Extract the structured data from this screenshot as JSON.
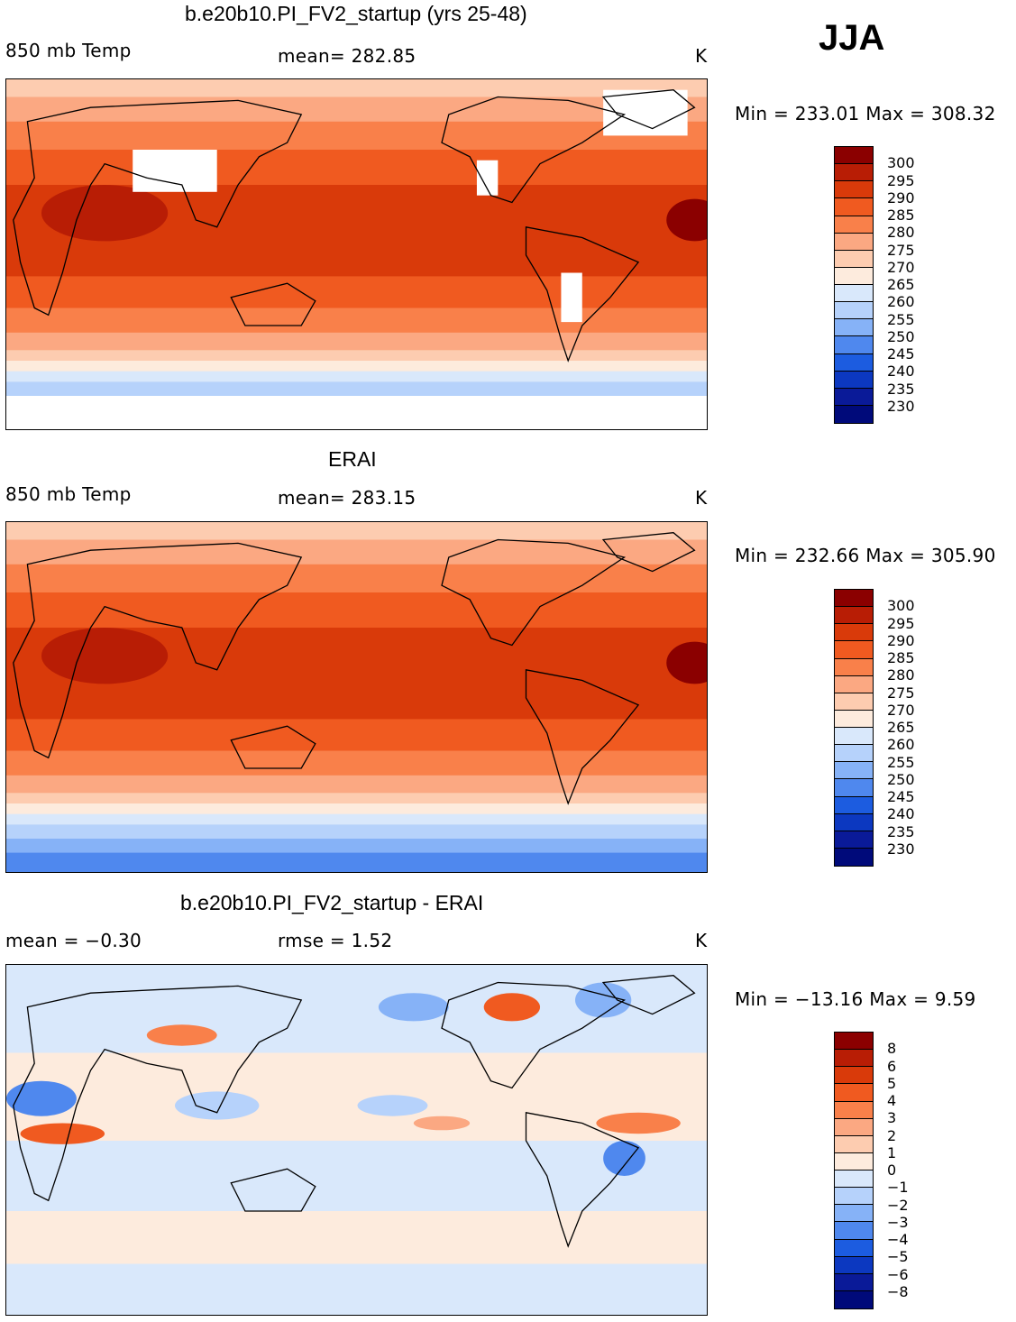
{
  "season": "JJA",
  "panels": [
    {
      "title": "b.e20b10.PI_FV2_startup (yrs 25-48)",
      "left_label": "850 mb Temp",
      "center_label": "mean=  282.85",
      "units": "K",
      "minmax": "Min = 233.01  Max = 308.32",
      "colorbar_labels": [
        "300",
        "295",
        "290",
        "285",
        "280",
        "275",
        "270",
        "265",
        "260",
        "255",
        "250",
        "245",
        "240",
        "235",
        "230"
      ],
      "variant": "model"
    },
    {
      "title": "ERAI",
      "left_label": "850 mb Temp",
      "center_label": "mean=  283.15",
      "units": "K",
      "minmax": "Min = 232.66  Max = 305.90",
      "colorbar_labels": [
        "300",
        "295",
        "290",
        "285",
        "280",
        "275",
        "270",
        "265",
        "260",
        "255",
        "250",
        "245",
        "240",
        "235",
        "230"
      ],
      "variant": "obs"
    },
    {
      "title": "b.e20b10.PI_FV2_startup - ERAI",
      "left_label": "mean =   −0.30",
      "center_label": "rmse =    1.52",
      "units": "K",
      "minmax": "Min = −13.16  Max =    9.59",
      "colorbar_labels": [
        "8",
        "6",
        "5",
        "4",
        "3",
        "2",
        "1",
        "0",
        "−1",
        "−2",
        "−3",
        "−4",
        "−5",
        "−6",
        "−8"
      ],
      "variant": "diff"
    }
  ],
  "colors": {
    "temp_scale": [
      "#8b0000",
      "#b81d05",
      "#d93a0a",
      "#f05a20",
      "#f9804a",
      "#fba882",
      "#fdccb0",
      "#fdebdd",
      "#d9e8fb",
      "#b6d2fb",
      "#86b2f7",
      "#4f88ee",
      "#1c5ce0",
      "#0c38c0",
      "#0a1a98",
      "#000a7a"
    ],
    "diff_scale": [
      "#8b0000",
      "#b81d05",
      "#d93a0a",
      "#f05a20",
      "#f9804a",
      "#fba882",
      "#fdccb0",
      "#fdebdd",
      "#d9e8fb",
      "#b6d2fb",
      "#86b2f7",
      "#4f88ee",
      "#1c5ce0",
      "#0c38c0",
      "#0a1a98",
      "#000a7a"
    ],
    "land_outline": "#000000",
    "missing": "#ffffff"
  }
}
